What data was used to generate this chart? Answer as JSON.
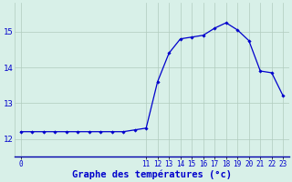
{
  "hours": [
    0,
    1,
    2,
    3,
    4,
    5,
    6,
    7,
    8,
    9,
    10,
    11,
    12,
    13,
    14,
    15,
    16,
    17,
    18,
    19,
    20,
    21,
    22,
    23
  ],
  "temps": [
    12.2,
    12.2,
    12.2,
    12.2,
    12.2,
    12.2,
    12.2,
    12.2,
    12.2,
    12.2,
    12.25,
    12.3,
    13.6,
    14.4,
    14.8,
    14.85,
    14.9,
    15.1,
    15.25,
    15.05,
    14.75,
    13.9,
    13.85,
    13.2
  ],
  "line_color": "#0000cc",
  "marker": "D",
  "marker_size": 1.8,
  "bg_color": "#d8f0e8",
  "grid_color": "#b0ccbe",
  "xlabel": "Graphe des températures (°c)",
  "xlabel_color": "#0000cc",
  "xlabel_fontsize": 7.5,
  "ylim": [
    11.5,
    15.8
  ],
  "xlim": [
    -0.5,
    23.5
  ],
  "tick_color": "#0000cc",
  "ytick_fontsize": 6.5,
  "xtick_fontsize": 5.5,
  "spine_color": "#0000aa",
  "yticks": [
    12,
    13,
    14,
    15
  ],
  "xtick_positions_left": [
    0
  ],
  "xtick_positions_right": [
    11,
    12,
    13,
    14,
    15,
    16,
    17,
    18,
    19,
    20,
    21,
    22,
    23
  ]
}
